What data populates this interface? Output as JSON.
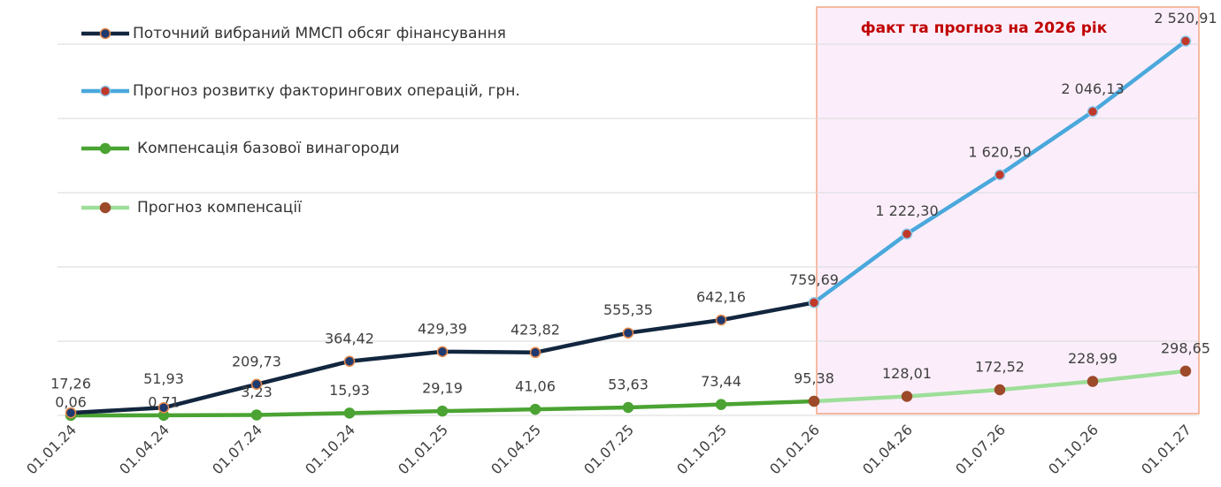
{
  "chart_data": {
    "type": "line",
    "annotation": "факт та прогноз на 2026 рік",
    "categories": [
      "01.01.24",
      "01.04.24",
      "01.07.24",
      "01.10.24",
      "01.01.25",
      "01.04.25",
      "01.07.25",
      "01.10.25",
      "01.01.26",
      "01.04.26",
      "01.07.26",
      "01.10.26",
      "01.01.27"
    ],
    "series": [
      {
        "name": "Поточний вибраний ММСП обсяг фінансування",
        "color": "#12263f",
        "marker": "#1f3a6e",
        "values": [
          17.26,
          51.93,
          209.73,
          364.42,
          429.39,
          423.82,
          555.35,
          642.16,
          759.69,
          null,
          null,
          null,
          null
        ],
        "value_labels": [
          "17,26",
          "51,93",
          "209,73",
          "364,42",
          "429,39",
          "423,82",
          "555,35",
          "642,16",
          "759,69",
          null,
          null,
          null,
          null
        ]
      },
      {
        "name": "Прогноз розвитку факторингових операцій, грн.",
        "color": "#4aa8dc",
        "marker": "#c0392b",
        "values": [
          null,
          null,
          null,
          null,
          null,
          null,
          null,
          null,
          759.69,
          1222.3,
          1620.5,
          2046.13,
          2520.91
        ],
        "value_labels": [
          null,
          null,
          null,
          null,
          null,
          null,
          null,
          null,
          null,
          "1 222,30",
          "1 620,50",
          "2 046,13",
          "2 520,91"
        ]
      },
      {
        "name": "Компенсація базової винагороди",
        "color": "#4aa332",
        "marker": "#4aa332",
        "values": [
          0.06,
          0.71,
          3.23,
          15.93,
          29.19,
          41.06,
          53.63,
          73.44,
          95.38,
          null,
          null,
          null,
          null
        ],
        "value_labels": [
          "0,06",
          "0,71",
          "3,23",
          "15,93",
          "29,19",
          "41,06",
          "53,63",
          "73,44",
          "95,38",
          null,
          null,
          null,
          null
        ]
      },
      {
        "name": "Прогноз компенсації",
        "color": "#9ede9a",
        "marker": "#9c4a2a",
        "values": [
          null,
          null,
          null,
          null,
          null,
          null,
          null,
          null,
          95.38,
          128.01,
          172.52,
          228.99,
          298.65
        ],
        "value_labels": [
          null,
          null,
          null,
          null,
          null,
          null,
          null,
          null,
          null,
          "128,01",
          "172,52",
          "228,99",
          "298,65"
        ]
      }
    ],
    "ylim": [
      0,
      2750
    ],
    "yticks": [
      0,
      500,
      1000,
      1500,
      2000,
      2500
    ],
    "grid": true
  }
}
